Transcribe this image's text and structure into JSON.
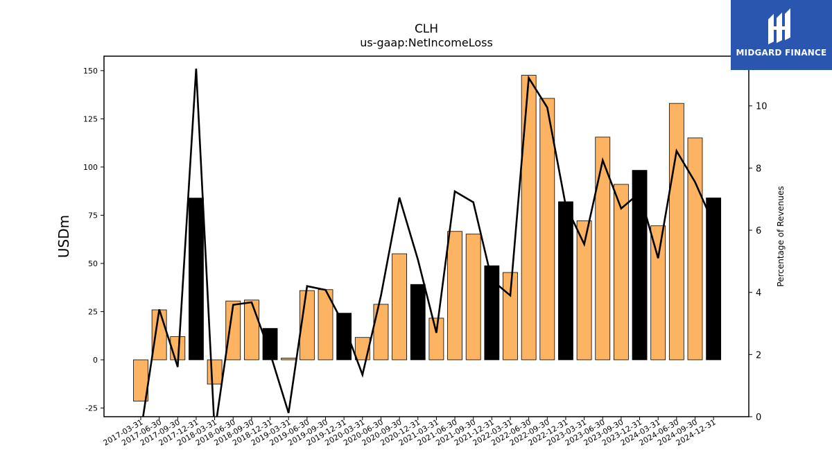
{
  "title": "CLH",
  "subtitle": "us-gaap:NetIncomeLoss",
  "logo": {
    "text": "MIDGARD FINANCE",
    "icon": "midgard-logo-icon",
    "bg_color": "#2a56b0"
  },
  "chart_data": {
    "type": "bar",
    "categories": [
      "2017-03-31",
      "2017-06-30",
      "2017-09-30",
      "2017-12-31",
      "2018-03-31",
      "2018-06-30",
      "2018-09-30",
      "2018-12-31",
      "2019-03-31",
      "2019-06-30",
      "2019-09-30",
      "2019-12-31",
      "2020-03-31",
      "2020-06-30",
      "2020-09-30",
      "2020-12-31",
      "2021-03-31",
      "2021-06-30",
      "2021-09-30",
      "2021-12-31",
      "2022-03-31",
      "2022-06-30",
      "2022-09-30",
      "2022-12-31",
      "2023-03-31",
      "2023-06-30",
      "2023-09-30",
      "2023-12-31",
      "2024-03-31",
      "2024-06-30",
      "2024-09-30",
      "2024-12-31"
    ],
    "series": [
      {
        "values": [
          -21.4,
          25.9,
          12.0,
          83.9,
          -12.6,
          30.5,
          31.0,
          16.3,
          0.9,
          35.9,
          36.4,
          24.2,
          11.6,
          28.8,
          55.0,
          39.1,
          21.6,
          66.6,
          65.2,
          48.8,
          45.3,
          147.6,
          135.6,
          82.0,
          72.1,
          115.5,
          91.0,
          98.3,
          69.5,
          133.0,
          115.1,
          84.0
        ],
        "colors": [
          "#fdb462",
          "#fdb462",
          "#fdb462",
          "#000000",
          "#fdb462",
          "#fdb462",
          "#fdb462",
          "#000000",
          "#fdb462",
          "#fdb462",
          "#fdb462",
          "#000000",
          "#fdb462",
          "#fdb462",
          "#fdb462",
          "#000000",
          "#fdb462",
          "#fdb462",
          "#fdb462",
          "#000000",
          "#fdb462",
          "#fdb462",
          "#fdb462",
          "#000000",
          "#fdb462",
          "#fdb462",
          "#fdb462",
          "#000000",
          "#fdb462",
          "#fdb462",
          "#fdb462",
          "#000000"
        ]
      },
      {
        "axis": "right",
        "type": "line",
        "color": "#000000",
        "values": [
          -0.5,
          3.45,
          1.6,
          11.2,
          -0.5,
          3.6,
          3.68,
          2.05,
          0.12,
          4.2,
          4.08,
          2.95,
          1.35,
          3.9,
          7.05,
          5.05,
          2.7,
          7.25,
          6.9,
          4.4,
          3.9,
          10.9,
          9.95,
          6.8,
          5.55,
          8.25,
          6.7,
          7.2,
          5.1,
          8.55,
          7.55,
          6.2
        ]
      }
    ],
    "ylabel": "USDm",
    "y2label": "Percentage of Revenues",
    "ylim": [
      -29.5,
      157.5
    ],
    "y2lim": [
      0,
      11.6
    ],
    "yticks": [
      -25,
      0,
      25,
      50,
      75,
      100,
      125,
      150
    ],
    "y2ticks": [
      0,
      2,
      4,
      6,
      8,
      10
    ],
    "grid": false,
    "legend": "none"
  }
}
